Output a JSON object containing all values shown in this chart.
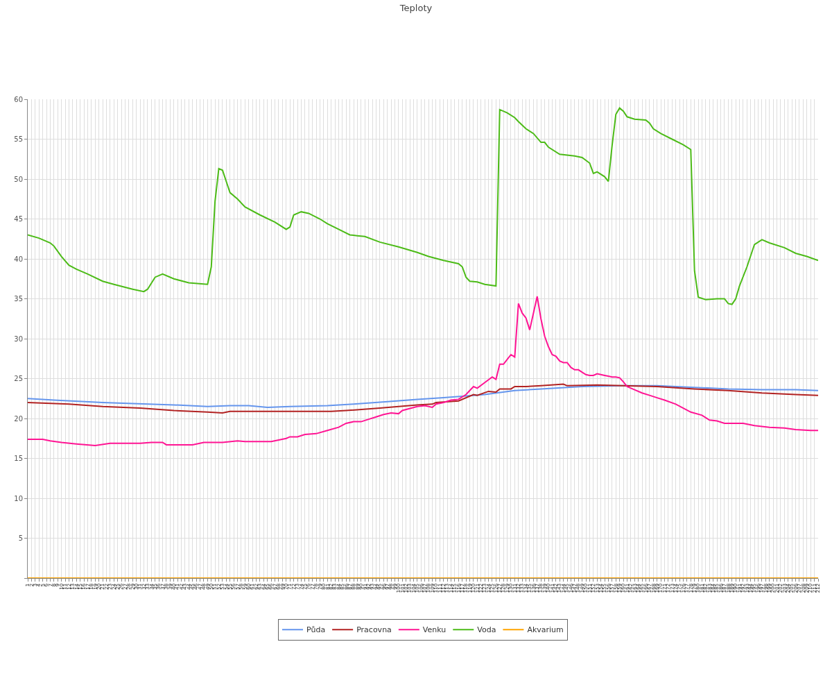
{
  "chart_data": {
    "type": "line",
    "title": "Teploty",
    "xlim": [
      1,
      212
    ],
    "xticks": [
      1,
      2,
      3,
      4,
      5,
      6,
      7,
      8,
      9,
      10,
      11,
      12,
      13,
      14,
      15,
      16,
      17,
      18,
      19,
      20,
      21,
      22,
      23,
      24,
      25,
      26,
      27,
      28,
      29,
      30,
      31,
      32,
      33,
      34,
      35,
      36,
      37,
      38,
      39,
      40,
      41,
      42,
      43,
      44,
      45,
      46,
      47,
      48,
      49,
      50,
      51,
      52,
      53,
      54,
      55,
      56,
      57,
      58,
      59,
      60,
      61,
      62,
      63,
      64,
      65,
      66,
      67,
      68,
      69,
      70,
      71,
      72,
      73,
      74,
      75,
      76,
      77,
      78,
      79,
      80,
      81,
      82,
      83,
      84,
      85,
      86,
      87,
      88,
      89,
      90,
      91,
      92,
      93,
      94,
      95,
      96,
      97,
      98,
      99,
      100,
      101,
      102,
      103,
      104,
      105,
      106,
      107,
      108,
      109,
      110,
      111,
      112,
      113,
      114,
      115,
      116,
      117,
      118,
      119,
      120,
      121,
      122,
      123,
      124,
      125,
      126,
      127,
      128,
      129,
      130,
      131,
      132,
      133,
      134,
      135,
      136,
      137,
      138,
      139,
      140,
      141,
      142,
      143,
      144,
      145,
      146,
      147,
      148,
      149,
      150,
      151,
      152,
      153,
      154,
      155,
      156,
      157,
      158,
      159,
      160,
      161,
      162,
      163,
      164,
      165,
      166,
      167,
      168,
      169,
      170,
      171,
      172,
      173,
      174,
      175,
      176,
      177,
      178,
      179,
      180,
      181,
      182,
      183,
      184,
      185,
      186,
      187,
      188,
      189,
      190,
      191,
      192,
      193,
      194,
      195,
      196,
      197,
      198,
      199,
      200,
      201,
      202,
      203,
      204,
      205,
      206,
      207,
      208,
      209,
      210,
      211,
      212
    ],
    "ylim": [
      0,
      60
    ],
    "yticks": [
      {
        "value": 0,
        "label": null
      },
      5,
      10,
      15,
      20,
      25,
      30,
      35,
      40,
      45,
      50,
      55,
      60
    ],
    "grid": true,
    "legend": "bottom",
    "marker": "none",
    "line_style": "solid",
    "series": [
      {
        "name": "Půda",
        "color": "#6495ed",
        "x": [
          1,
          8,
          21,
          40,
          49,
          55,
          60,
          65,
          71,
          81,
          88,
          97,
          105,
          112,
          120,
          123,
          131,
          138,
          149,
          160,
          169,
          179,
          188,
          197,
          206,
          212
        ],
        "values": [
          22.5,
          22.3,
          22.0,
          21.7,
          21.5,
          21.6,
          21.6,
          21.4,
          21.5,
          21.6,
          21.8,
          22.1,
          22.4,
          22.6,
          22.9,
          23.0,
          23.5,
          23.7,
          24.0,
          24.1,
          24.1,
          23.9,
          23.7,
          23.6,
          23.6,
          23.5
        ]
      },
      {
        "name": "Pracovna",
        "color": "#b22222",
        "x": [
          1,
          12,
          21,
          31,
          40,
          49,
          53,
          55,
          68,
          82,
          86,
          95,
          105,
          109,
          110,
          116,
          120,
          121,
          124,
          126,
          127,
          130,
          131,
          134,
          138,
          144,
          145,
          153,
          160,
          169,
          179,
          188,
          197,
          206,
          212
        ],
        "values": [
          22.0,
          21.8,
          21.5,
          21.3,
          21.0,
          20.8,
          20.7,
          20.9,
          20.9,
          20.9,
          21.0,
          21.3,
          21.7,
          21.8,
          22.0,
          22.2,
          23.0,
          22.9,
          23.4,
          23.3,
          23.7,
          23.7,
          24.0,
          24.0,
          24.1,
          24.3,
          24.1,
          24.2,
          24.1,
          24.0,
          23.7,
          23.5,
          23.2,
          23.0,
          22.9
        ]
      },
      {
        "name": "Venku",
        "color": "#ff1493",
        "x": [
          1,
          5,
          7,
          10,
          14,
          19,
          23,
          27,
          31,
          34,
          37,
          38,
          45,
          48,
          53,
          57,
          59,
          66,
          68,
          70,
          71,
          73,
          75,
          78,
          81,
          84,
          86,
          88,
          90,
          92,
          94,
          96,
          98,
          100,
          101,
          105,
          107,
          109,
          110,
          112,
          114,
          116,
          118,
          120,
          121,
          123,
          125,
          126,
          127,
          128,
          129,
          130,
          131,
          132,
          133,
          134,
          135,
          136,
          137,
          138,
          139,
          140,
          141,
          142,
          143,
          144,
          145,
          146,
          147,
          148,
          149,
          150,
          151,
          152,
          153,
          154,
          155,
          156,
          157,
          158,
          159,
          160,
          161,
          163,
          165,
          167,
          169,
          171,
          174,
          176,
          178,
          181,
          182,
          183,
          185,
          187,
          192,
          195,
          199,
          203,
          206,
          210,
          212
        ],
        "values": [
          17.4,
          17.4,
          17.2,
          17.0,
          16.8,
          16.6,
          16.9,
          16.9,
          16.9,
          17.0,
          17.0,
          16.7,
          16.7,
          17.0,
          17.0,
          17.2,
          17.1,
          17.1,
          17.3,
          17.5,
          17.7,
          17.7,
          18.0,
          18.1,
          18.5,
          18.9,
          19.4,
          19.6,
          19.6,
          19.9,
          20.2,
          20.5,
          20.7,
          20.6,
          21.0,
          21.5,
          21.6,
          21.4,
          21.8,
          22.0,
          22.3,
          22.4,
          23.0,
          24.0,
          23.8,
          24.5,
          25.2,
          24.9,
          26.8,
          26.8,
          27.4,
          28.0,
          27.7,
          34.4,
          33.2,
          32.6,
          31.1,
          33.2,
          35.3,
          32.5,
          30.3,
          29.0,
          28.0,
          27.8,
          27.2,
          27.0,
          27.0,
          26.4,
          26.1,
          26.1,
          25.8,
          25.5,
          25.4,
          25.4,
          25.6,
          25.5,
          25.4,
          25.3,
          25.2,
          25.2,
          25.1,
          24.6,
          24.0,
          23.6,
          23.2,
          22.9,
          22.6,
          22.3,
          21.8,
          21.3,
          20.8,
          20.4,
          20.1,
          19.8,
          19.7,
          19.4,
          19.4,
          19.1,
          18.9,
          18.8,
          18.6,
          18.5,
          18.5
        ]
      },
      {
        "name": "Voda",
        "color": "#4cbb17",
        "x": [
          1,
          4,
          7,
          8,
          10,
          12,
          14,
          17,
          21,
          24,
          29,
          32,
          33,
          35,
          37,
          40,
          44,
          49,
          50,
          51,
          52,
          53,
          54,
          55,
          57,
          59,
          63,
          67,
          70,
          71,
          72,
          74,
          76,
          79,
          81,
          84,
          87,
          89,
          91,
          95,
          100,
          105,
          108,
          112,
          116,
          117,
          118,
          119,
          121,
          123,
          126,
          127,
          129,
          131,
          132,
          134,
          136,
          138,
          139,
          140,
          143,
          147,
          149,
          151,
          152,
          153,
          155,
          156,
          157,
          158,
          159,
          160,
          161,
          163,
          166,
          167,
          168,
          170,
          173,
          176,
          178,
          179,
          180,
          182,
          185,
          187,
          188,
          189,
          190,
          191,
          193,
          195,
          197,
          199,
          203,
          206,
          209,
          212
        ],
        "values": [
          43.0,
          42.6,
          42.0,
          41.6,
          40.3,
          39.2,
          38.7,
          38.1,
          37.2,
          36.8,
          36.2,
          35.9,
          36.2,
          37.7,
          38.1,
          37.5,
          37.0,
          36.8,
          39.0,
          47.2,
          51.3,
          51.1,
          49.7,
          48.3,
          47.5,
          46.5,
          45.5,
          44.6,
          43.7,
          44.0,
          45.5,
          45.9,
          45.7,
          45.0,
          44.4,
          43.7,
          43.0,
          42.9,
          42.8,
          42.1,
          41.5,
          40.8,
          40.3,
          39.8,
          39.4,
          39.0,
          37.7,
          37.2,
          37.1,
          36.8,
          36.6,
          58.7,
          58.3,
          57.7,
          57.2,
          56.3,
          55.7,
          54.6,
          54.6,
          54.0,
          53.1,
          52.9,
          52.7,
          52.0,
          50.7,
          50.9,
          50.3,
          49.7,
          54.2,
          58.1,
          58.9,
          58.5,
          57.8,
          57.5,
          57.4,
          57.0,
          56.3,
          55.7,
          55.0,
          54.3,
          53.7,
          38.5,
          35.2,
          34.9,
          35.0,
          35.0,
          34.4,
          34.3,
          35.0,
          36.6,
          39.0,
          41.8,
          42.4,
          42.0,
          41.4,
          40.7,
          40.3,
          39.8
        ]
      },
      {
        "name": "Akvarium",
        "color": "#ffa500",
        "x": [
          1,
          212
        ],
        "values": [
          0,
          0
        ]
      }
    ]
  }
}
